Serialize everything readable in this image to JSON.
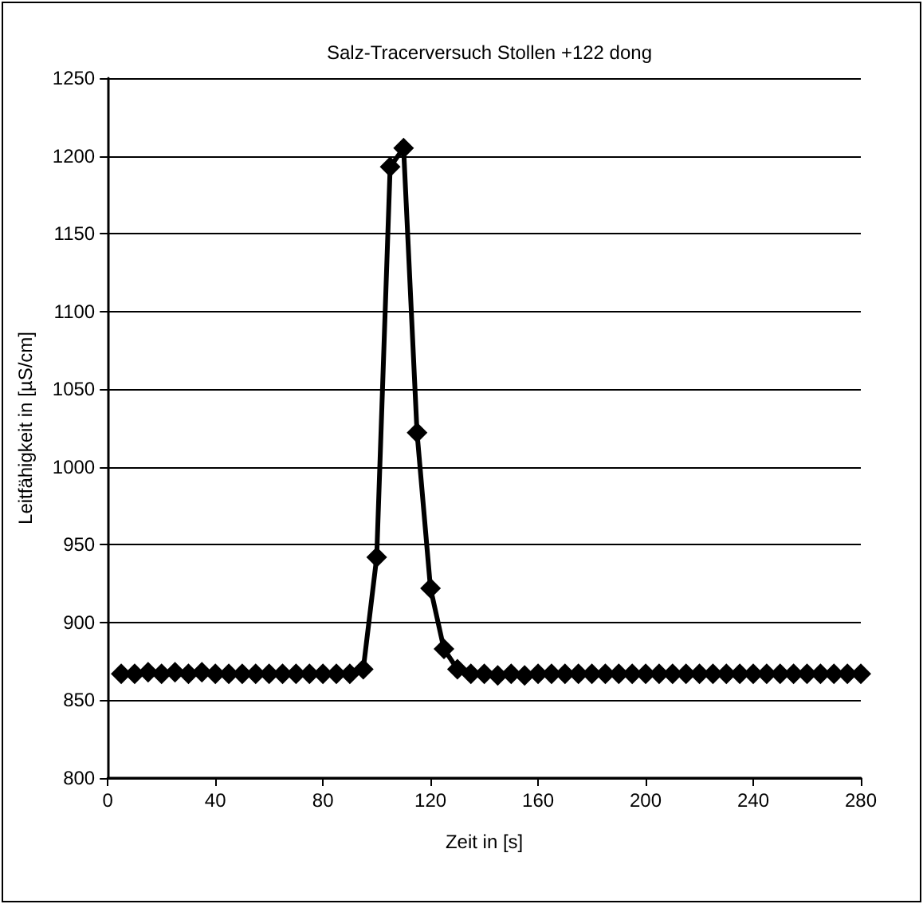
{
  "chart_data": {
    "type": "line",
    "title": "Salz-Tracerversuch Stollen +122 dong",
    "xlabel": "Zeit in [s]",
    "ylabel": "Leitfähigkeit in [µS/cm]",
    "x": [
      5,
      10,
      15,
      20,
      25,
      30,
      35,
      40,
      45,
      50,
      55,
      60,
      65,
      70,
      75,
      80,
      85,
      90,
      95,
      100,
      105,
      110,
      115,
      120,
      125,
      130,
      135,
      140,
      145,
      150,
      155,
      160,
      165,
      170,
      175,
      180,
      185,
      190,
      195,
      200,
      205,
      210,
      215,
      220,
      225,
      230,
      235,
      240,
      245,
      250,
      255,
      260,
      265,
      270,
      275,
      280
    ],
    "series": [
      {
        "color": "#000000",
        "values": [
          867,
          867,
          868,
          867,
          868,
          867,
          868,
          867,
          867,
          867,
          867,
          867,
          867,
          867,
          867,
          867,
          867,
          867,
          870,
          942,
          1193,
          1205,
          1022,
          922,
          883,
          870,
          867,
          867,
          866,
          867,
          866,
          867,
          867,
          867,
          867,
          867,
          867,
          867,
          867,
          867,
          867,
          867,
          867,
          867,
          867,
          867,
          867,
          867,
          867,
          867,
          867,
          867,
          867,
          867,
          867,
          867
        ]
      }
    ],
    "xlim": [
      0,
      280
    ],
    "xticks": [
      0,
      40,
      80,
      120,
      160,
      200,
      240,
      280
    ],
    "ylim": [
      800,
      1250
    ],
    "yticks": [
      800,
      850,
      900,
      950,
      1000,
      1050,
      1100,
      1150,
      1200,
      1250
    ],
    "grid": "y",
    "marker": "diamond",
    "line_style": "solid"
  }
}
